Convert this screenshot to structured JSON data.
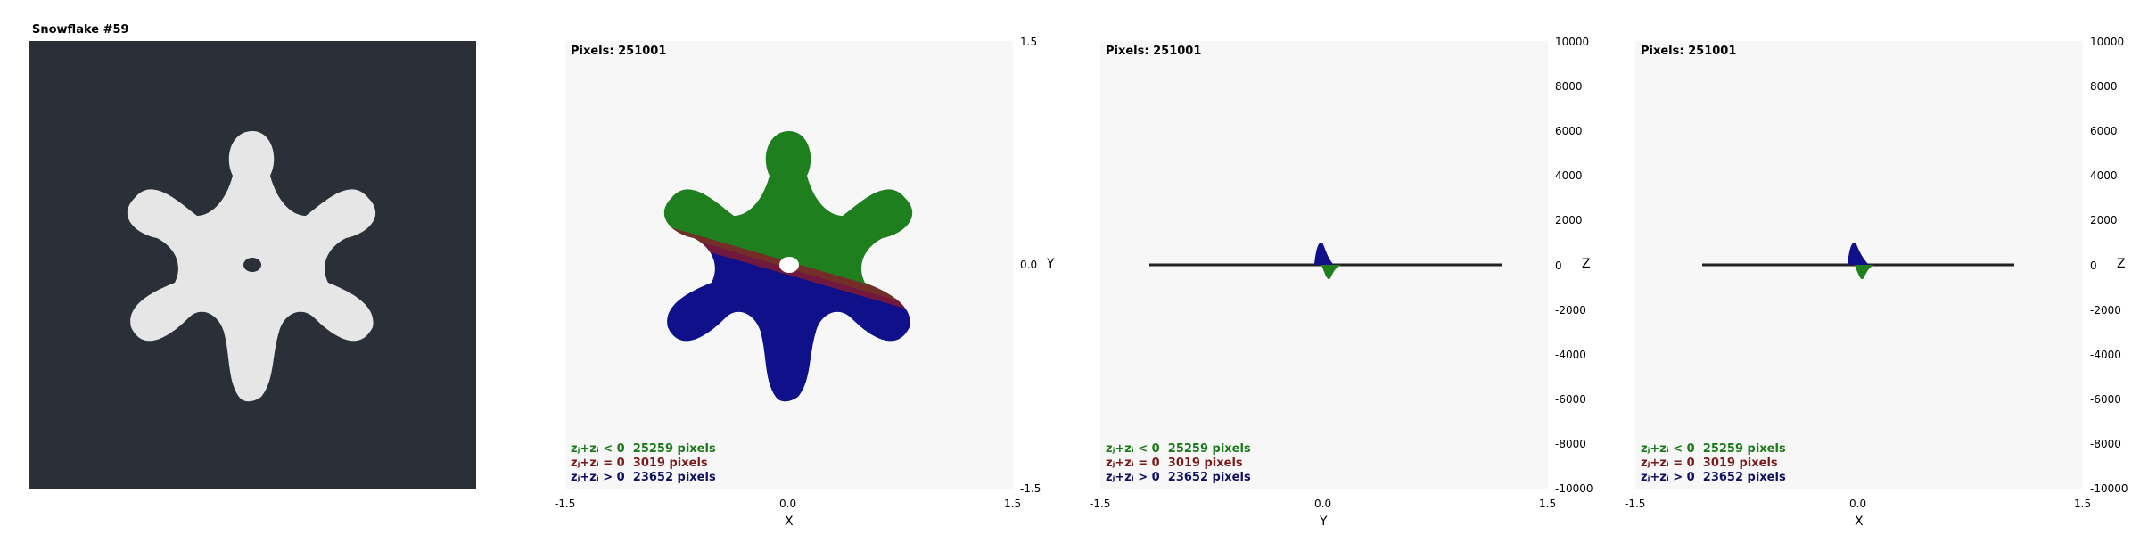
{
  "title": "Snowflake #59",
  "panels": [
    {
      "id": "xy",
      "pixels": "Pixels: 251001",
      "xaxis": "X",
      "yaxis": "Y",
      "xticks": [
        "-1.5",
        "0.0",
        "1.5"
      ],
      "yticks": [
        "1.5",
        "0.0",
        "-1.5"
      ]
    },
    {
      "id": "yz",
      "pixels": "Pixels: 251001",
      "xaxis": "Y",
      "yaxis": "Z",
      "xticks": [
        "-1.5",
        "0.0",
        "1.5"
      ],
      "yticks": [
        "10000",
        "8000",
        "6000",
        "4000",
        "2000",
        "0",
        "-2000",
        "-4000",
        "-6000",
        "-8000",
        "-10000"
      ]
    },
    {
      "id": "xz",
      "pixels": "Pixels: 251001",
      "xaxis": "X",
      "yaxis": "Z",
      "xticks": [
        "-1.5",
        "0.0",
        "1.5"
      ],
      "yticks": [
        "10000",
        "8000",
        "6000",
        "4000",
        "2000",
        "0",
        "-2000",
        "-4000",
        "-6000",
        "-8000",
        "-10000"
      ]
    }
  ],
  "legend": [
    {
      "text": "zⱼ+zᵢ < 0  25259 pixels",
      "color": "#1a7a1a"
    },
    {
      "text": "zⱼ+zᵢ = 0  3019 pixels",
      "color": "#7a1a1a"
    },
    {
      "text": "zⱼ+zᵢ > 0  23652 pixels",
      "color": "#101060"
    }
  ],
  "colors": {
    "green": "#1f7f1f",
    "blue": "#10108a",
    "red": "#8a1a2a",
    "dark": "#2a2f38",
    "flake": "#e6e6e6"
  }
}
